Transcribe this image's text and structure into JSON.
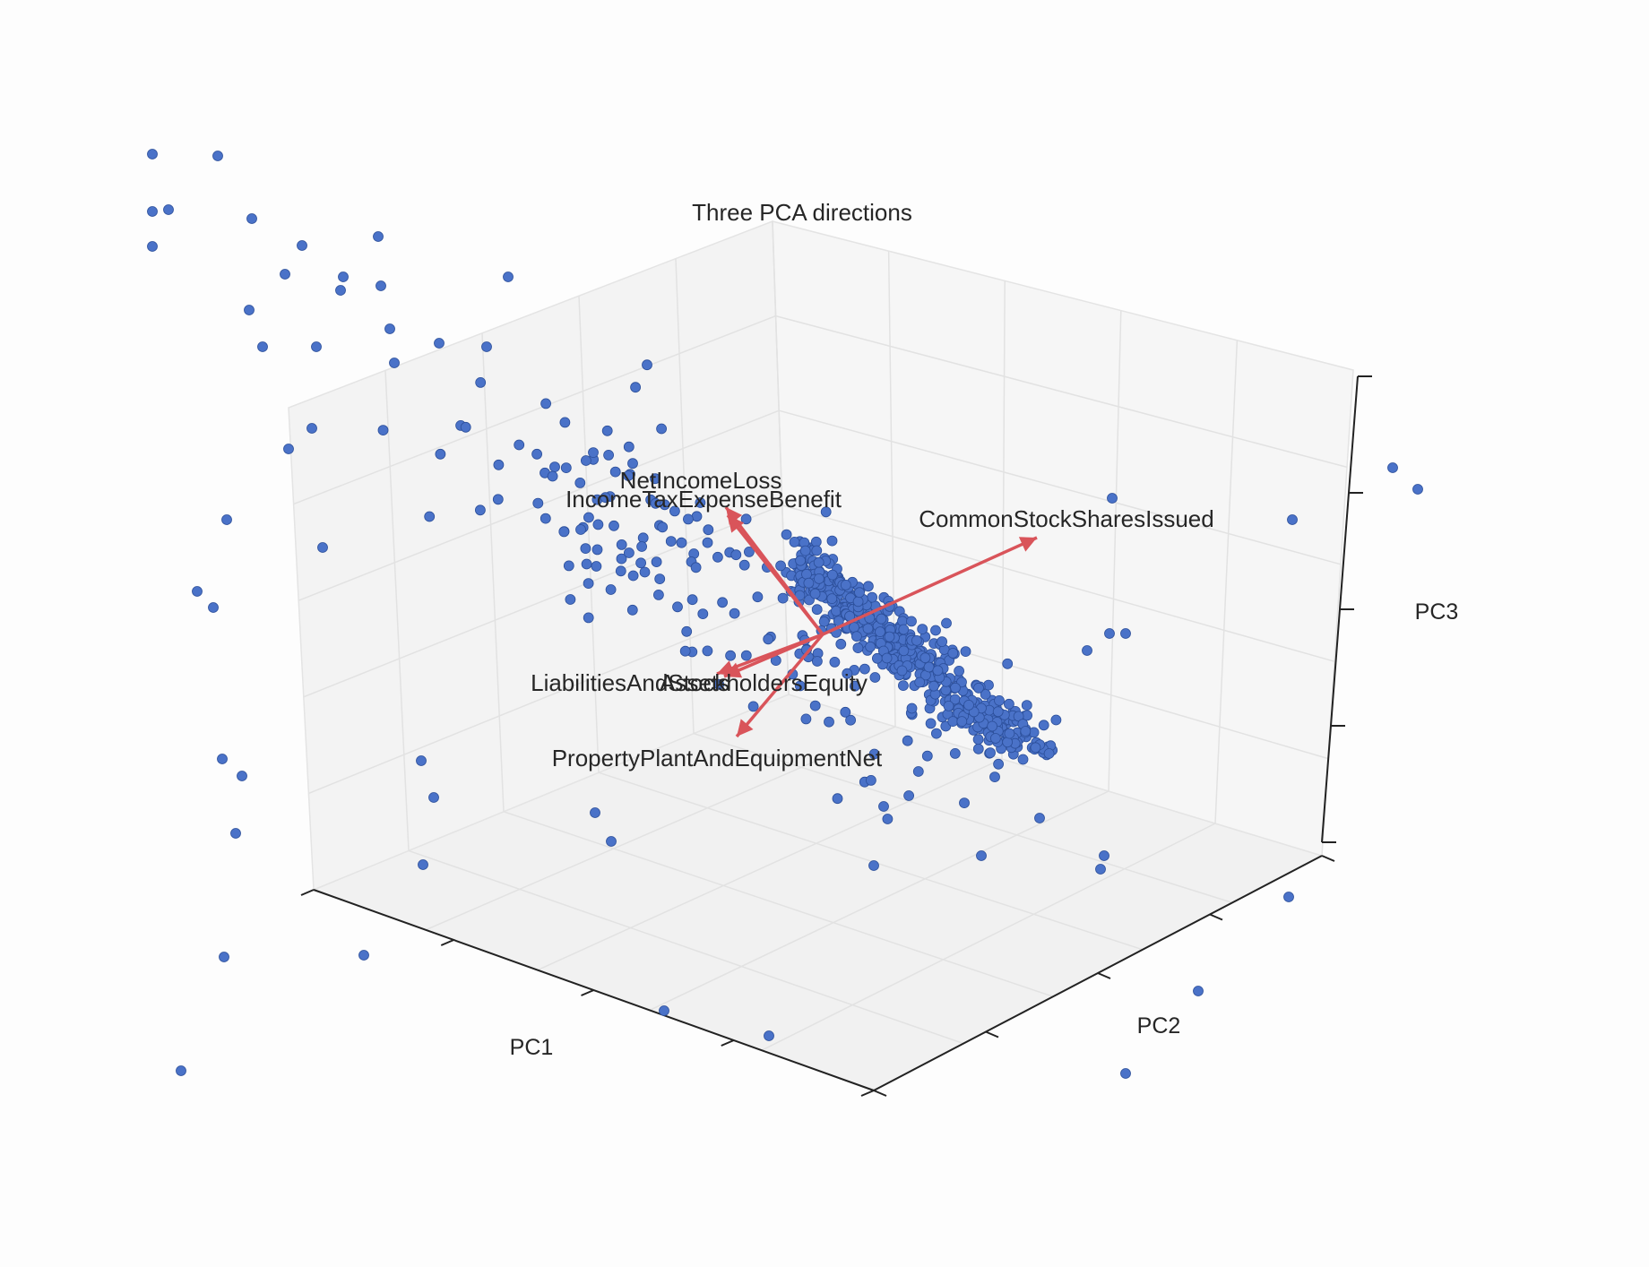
{
  "chart_data": {
    "type": "scatter",
    "title": "Three PCA directions",
    "xlabel": "PC1",
    "ylabel": "PC2",
    "zlabel": "PC3",
    "grid": true,
    "projection": "3d",
    "point_color": "#4a72c8",
    "arrow_color": "#d9545a",
    "vectors": [
      {
        "name": "NetIncomeLoss"
      },
      {
        "name": "IncomeTaxExpenseBenefit"
      },
      {
        "name": "CommonStockSharesIssued"
      },
      {
        "name": "LiabilitiesAndStockholdersEquity"
      },
      {
        "name": "Assets"
      },
      {
        "name": "PropertyPlantAndEquipmentNet"
      }
    ]
  }
}
